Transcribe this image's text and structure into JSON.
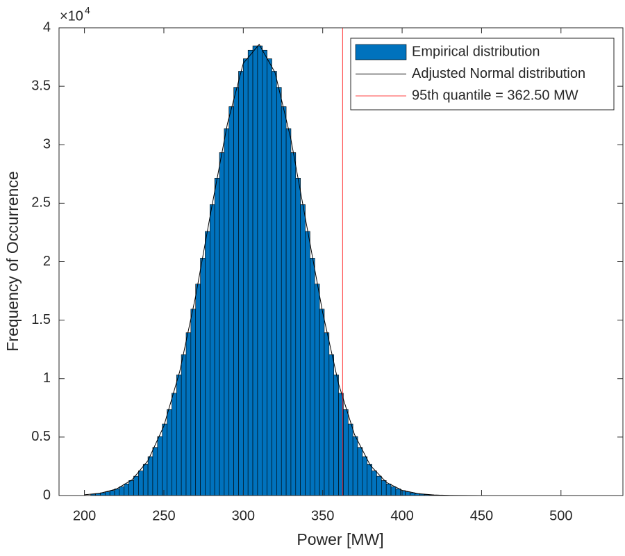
{
  "chart_data": {
    "type": "histogram",
    "xlabel": "Power [MW]",
    "ylabel": "Frequency of Occurrence",
    "y_multiplier": {
      "base": "×10",
      "exponent": "4"
    },
    "xlim": [
      184,
      539
    ],
    "xticks": [
      200,
      250,
      300,
      350,
      400,
      450,
      500
    ],
    "ylim": [
      0,
      40000
    ],
    "yticks": [
      0,
      {
        "value": 5000,
        "label": "0.5"
      },
      {
        "value": 10000,
        "label": "1"
      },
      {
        "value": 15000,
        "label": "1.5"
      },
      {
        "value": 20000,
        "label": "2"
      },
      {
        "value": 25000,
        "label": "2.5"
      },
      {
        "value": 30000,
        "label": "3"
      },
      {
        "value": 35000,
        "label": "3.5"
      },
      {
        "value": 40000,
        "label": "4"
      }
    ],
    "legend": "upper right",
    "bins": [
      204,
      207,
      210,
      213,
      216,
      219,
      222,
      225,
      228,
      231,
      234,
      237,
      240,
      243,
      246,
      249,
      252,
      255,
      258,
      261,
      264,
      267,
      270,
      273,
      276,
      279,
      282,
      285,
      288,
      291,
      294,
      297,
      300,
      303,
      306,
      309,
      312,
      315,
      318,
      321,
      324,
      327,
      330,
      333,
      336,
      339,
      342,
      345,
      348,
      351,
      354,
      357,
      360,
      363,
      366,
      369,
      372,
      375,
      378,
      381,
      384,
      387,
      390,
      393,
      396,
      399,
      402,
      405,
      408,
      411,
      414,
      417,
      420,
      423,
      426,
      429,
      432,
      435,
      438,
      441,
      444,
      447,
      450
    ],
    "series": [
      {
        "name": "Empirical distribution",
        "color": "#0072bd",
        "values": [
          122,
          169,
          233,
          317,
          428,
          572,
          757,
          993,
          1289,
          1657,
          2109,
          2663,
          3327,
          4116,
          5043,
          6119,
          7354,
          8753,
          10318,
          12043,
          13924,
          15942,
          18084,
          20305,
          22588,
          24879,
          27143,
          29329,
          31381,
          33260,
          34908,
          36286,
          37353,
          38083,
          38454,
          38454,
          38083,
          37353,
          36286,
          34908,
          33260,
          31381,
          29329,
          27143,
          24879,
          22588,
          20305,
          18084,
          15942,
          13924,
          12043,
          10318,
          8753,
          7354,
          6119,
          5043,
          4116,
          3327,
          2663,
          2109,
          1657,
          1289,
          993,
          757,
          572,
          428,
          317,
          233,
          169,
          122,
          87,
          61,
          43,
          30,
          20,
          14,
          9,
          6,
          4,
          3,
          2,
          1
        ]
      }
    ],
    "curve": {
      "name": "Adjusted Normal distribution",
      "color": "#000000",
      "x": [
        200,
        210,
        220,
        230,
        240,
        250,
        260,
        270,
        280,
        290,
        300,
        310,
        320,
        330,
        340,
        350,
        360,
        370,
        380,
        390,
        400,
        410,
        420,
        430,
        440,
        450
      ],
      "values": [
        65,
        199,
        547,
        1348,
        2987,
        5944,
        10619,
        17042,
        24565,
        31791,
        36956,
        38579,
        36168,
        30455,
        23029,
        15641,
        9538,
        5223,
        2571,
        1135,
        450,
        161,
        51,
        15,
        4,
        1
      ]
    },
    "vline": {
      "name": "95th quantile = 362.50 MW",
      "color": "#ff0000",
      "value": 362.5
    }
  }
}
